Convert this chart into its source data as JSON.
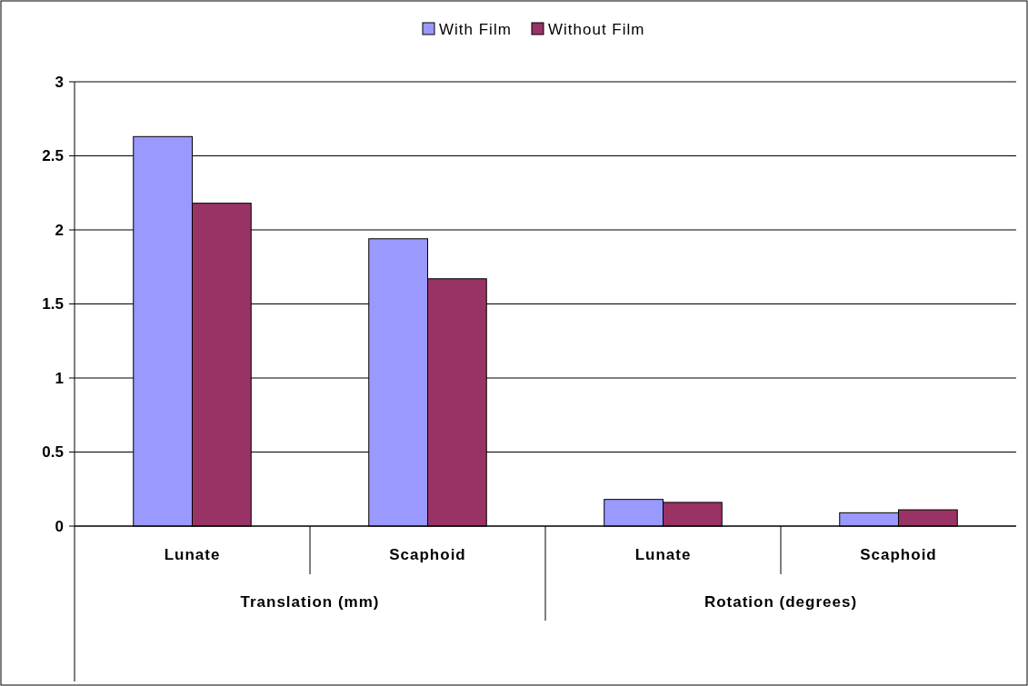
{
  "chart_data": {
    "type": "bar",
    "categories": [
      "Lunate",
      "Scaphoid",
      "Lunate",
      "Scaphoid"
    ],
    "series": [
      {
        "name": "With Film",
        "color": "#9999ff",
        "values": [
          2.63,
          1.94,
          0.18,
          0.09
        ]
      },
      {
        "name": "Without Film",
        "color": "#993366",
        "values": [
          2.18,
          1.67,
          0.16,
          0.11
        ]
      }
    ],
    "annotations": [
      "Translation (mm)",
      "Rotation (degrees)"
    ],
    "ylim": [
      0,
      3
    ],
    "yticks": [
      0,
      0.5,
      1,
      1.5,
      2,
      2.5,
      3
    ],
    "grid": "y",
    "legend": "top"
  }
}
